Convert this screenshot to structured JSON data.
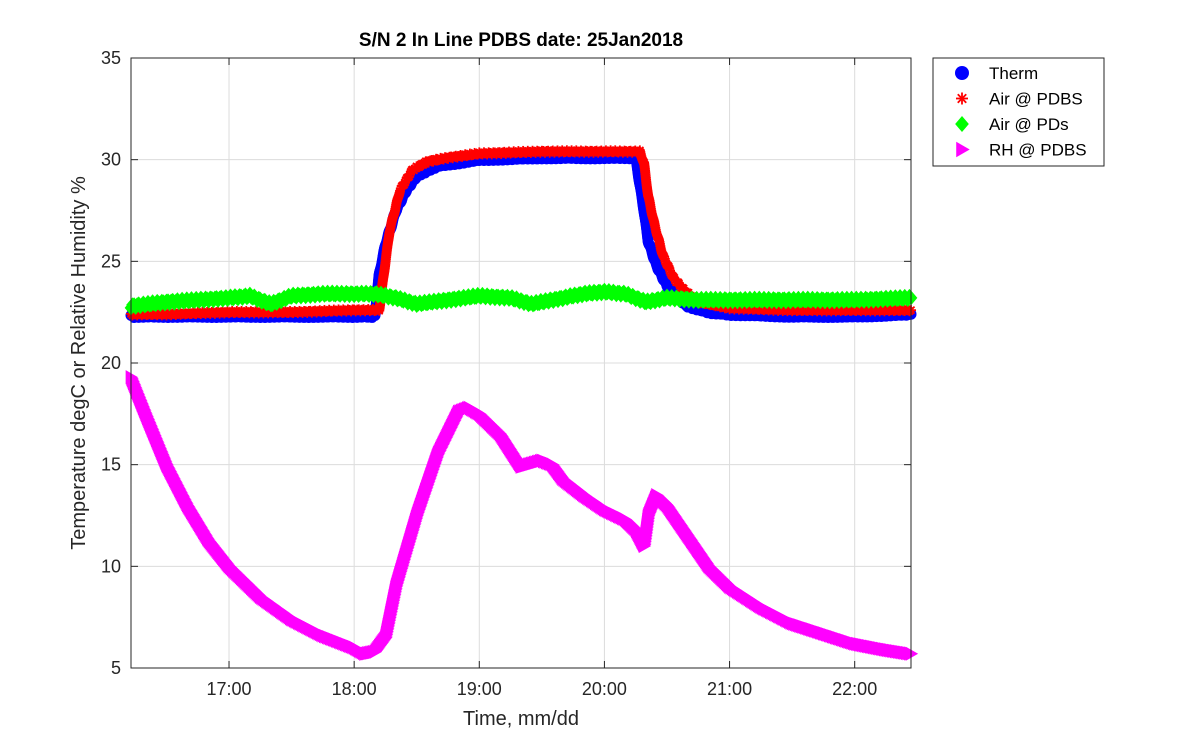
{
  "chart_data": {
    "type": "scatter",
    "title": "S/N 2 In Line PDBS date: 25Jan2018",
    "xlabel": "Time, mm/dd",
    "ylabel": "Temperature degC or Relative Humidity %",
    "xlim": [
      "16:13",
      "22:27"
    ],
    "ylim": [
      5,
      35
    ],
    "xticks": [
      "17:00",
      "18:00",
      "19:00",
      "20:00",
      "21:00",
      "22:00"
    ],
    "yticks": [
      5,
      10,
      15,
      20,
      25,
      30,
      35
    ],
    "grid": true,
    "legend_position": "outside-top-right",
    "series": [
      {
        "name": "Therm",
        "marker": "circle",
        "color": "#0000ff",
        "x": [
          "16:13",
          "16:30",
          "17:00",
          "17:30",
          "18:00",
          "18:10",
          "18:12",
          "18:15",
          "18:20",
          "18:25",
          "18:30",
          "18:40",
          "19:00",
          "19:30",
          "20:00",
          "20:15",
          "20:17",
          "20:19",
          "20:21",
          "20:25",
          "20:30",
          "20:35",
          "20:40",
          "20:50",
          "21:00",
          "21:30",
          "22:00",
          "22:27"
        ],
        "y": [
          22.3,
          22.3,
          22.3,
          22.3,
          22.3,
          22.3,
          24.3,
          25.8,
          27.5,
          28.5,
          29.2,
          29.7,
          30.0,
          30.1,
          30.1,
          30.1,
          28.8,
          27.5,
          26.0,
          24.8,
          23.8,
          23.2,
          22.8,
          22.5,
          22.4,
          22.3,
          22.3,
          22.4
        ]
      },
      {
        "name": "Air @ PDBS",
        "marker": "asterisk",
        "color": "#ff0000",
        "x": [
          "16:13",
          "16:30",
          "17:00",
          "17:30",
          "18:00",
          "18:12",
          "18:14",
          "18:17",
          "18:22",
          "18:28",
          "18:35",
          "18:45",
          "19:00",
          "19:30",
          "20:00",
          "20:17",
          "20:19",
          "20:21",
          "20:24",
          "20:28",
          "20:33",
          "20:38",
          "20:45",
          "21:00",
          "21:30",
          "22:00",
          "22:27"
        ],
        "y": [
          22.4,
          22.4,
          22.5,
          22.5,
          22.6,
          22.6,
          24.2,
          26.5,
          28.5,
          29.5,
          29.9,
          30.1,
          30.3,
          30.4,
          30.4,
          30.4,
          29.8,
          28.2,
          26.8,
          25.3,
          24.2,
          23.6,
          23.0,
          22.7,
          22.6,
          22.6,
          22.6
        ]
      },
      {
        "name": "Air @ PDs",
        "marker": "diamond",
        "color": "#00ff00",
        "x": [
          "16:13",
          "16:30",
          "17:00",
          "17:10",
          "17:20",
          "17:30",
          "17:45",
          "18:00",
          "18:10",
          "18:20",
          "18:30",
          "18:45",
          "19:00",
          "19:15",
          "19:25",
          "19:40",
          "19:50",
          "20:00",
          "20:10",
          "20:20",
          "20:30",
          "20:45",
          "21:00",
          "21:30",
          "22:00",
          "22:27"
        ],
        "y": [
          22.8,
          23.0,
          23.2,
          23.3,
          22.9,
          23.3,
          23.4,
          23.4,
          23.4,
          23.2,
          22.9,
          23.1,
          23.3,
          23.2,
          22.9,
          23.2,
          23.4,
          23.5,
          23.4,
          23.0,
          23.2,
          23.1,
          23.1,
          23.1,
          23.1,
          23.2
        ]
      },
      {
        "name": "RH @ PDBS",
        "marker": "triangle-right",
        "color": "#ff00ff",
        "x": [
          "16:13",
          "16:20",
          "16:30",
          "16:40",
          "16:50",
          "17:00",
          "17:15",
          "17:30",
          "17:45",
          "18:00",
          "18:05",
          "18:10",
          "18:15",
          "18:20",
          "18:30",
          "18:40",
          "18:50",
          "18:55",
          "19:00",
          "19:10",
          "19:20",
          "19:30",
          "19:35",
          "19:40",
          "19:50",
          "20:00",
          "20:10",
          "20:15",
          "20:19",
          "20:21",
          "20:25",
          "20:30",
          "20:40",
          "20:50",
          "21:00",
          "21:15",
          "21:30",
          "21:45",
          "22:00",
          "22:15",
          "22:27"
        ],
        "y": [
          19.3,
          17.5,
          15.0,
          13.0,
          11.3,
          10.0,
          8.5,
          7.4,
          6.6,
          6.0,
          5.7,
          5.8,
          6.5,
          9.0,
          12.5,
          15.5,
          17.6,
          17.8,
          17.5,
          16.5,
          14.9,
          15.2,
          15.0,
          14.3,
          13.5,
          12.8,
          12.3,
          11.8,
          11.0,
          12.5,
          13.5,
          13.0,
          11.5,
          10.0,
          9.0,
          8.0,
          7.2,
          6.7,
          6.2,
          5.9,
          5.7
        ]
      }
    ]
  }
}
